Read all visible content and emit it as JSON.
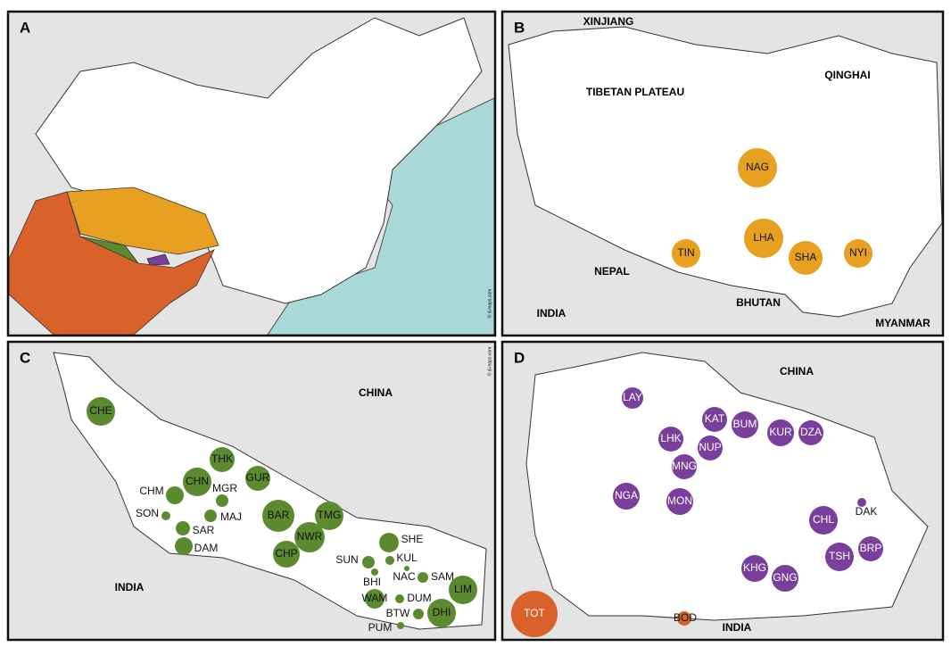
{
  "panels": [
    {
      "letter": "A",
      "credit": "© d-maps.com",
      "regions": [],
      "groups": []
    },
    {
      "letter": "B",
      "regions": [
        "XINJIANG",
        "QINGHAI",
        "TIBETAN PLATEAU",
        "NEPAL",
        "INDIA",
        "BHUTAN",
        "MYANMAR"
      ],
      "groups": [
        {
          "color": "#e8a020",
          "codes": [
            "NAG",
            "LHA",
            "TIN",
            "SHA",
            "NYI"
          ]
        }
      ]
    },
    {
      "letter": "C",
      "credit": "© d-maps.com",
      "regions": [
        "CHINA",
        "INDIA"
      ],
      "groups": [
        {
          "color": "#5b8a2f",
          "codes": [
            "CHE",
            "THK",
            "CHN",
            "GUR",
            "CHM",
            "MGR",
            "SON",
            "MAJ",
            "SAR",
            "DAM",
            "BAR",
            "TMG",
            "NWR",
            "CHP",
            "SHE",
            "SUN",
            "KUL",
            "BHI",
            "NAC",
            "SAM",
            "LIM",
            "WAM",
            "DUM",
            "DHI",
            "BTW",
            "PUM"
          ]
        }
      ]
    },
    {
      "letter": "D",
      "regions": [
        "CHINA",
        "INDIA"
      ],
      "groups": [
        {
          "color": "#7a3f9c",
          "codes": [
            "LAY",
            "KAT",
            "BUM",
            "KUR",
            "DZA",
            "LHK",
            "NUP",
            "MNG",
            "NGA",
            "MON",
            "DAK",
            "CHL",
            "TSH",
            "BRP",
            "KHG",
            "GNG"
          ]
        },
        {
          "color": "#d9622b",
          "codes": [
            "TOT",
            "BOD"
          ]
        }
      ]
    }
  ]
}
